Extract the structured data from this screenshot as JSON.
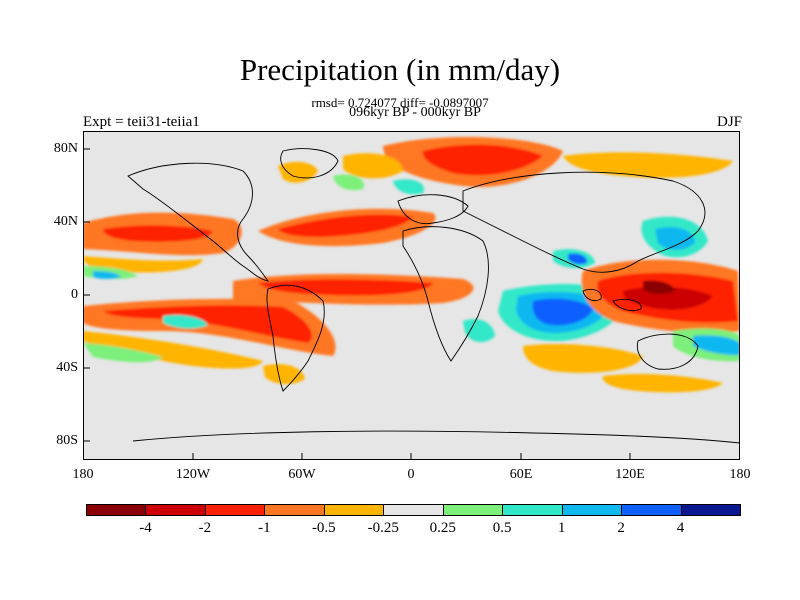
{
  "header": {
    "title": "Precipitation (in mm/day)",
    "stats": "rmsd= 0.724077 diff= -0.0897007",
    "period": "096kyr BP - 000kyr BP",
    "experiment": "Expt = teii31-teiia1",
    "season": "DJF"
  },
  "axes": {
    "y_ticks": [
      "80N",
      "40N",
      "0",
      "40S",
      "80S"
    ],
    "x_ticks": [
      "180",
      "120W",
      "60W",
      "0",
      "60E",
      "120E",
      "180"
    ]
  },
  "colorbar": {
    "labels": [
      "-4",
      "-2",
      "-1",
      "-0.5",
      "-0.25",
      "0.25",
      "0.5",
      "1",
      "2",
      "4"
    ],
    "colors": [
      "#8b0000",
      "#cc0000",
      "#ff2200",
      "#ff7722",
      "#ffb400",
      "#e6e6e6",
      "#7cf07a",
      "#30e8c8",
      "#10b8f0",
      "#1060ff",
      "#0a1890"
    ]
  }
}
